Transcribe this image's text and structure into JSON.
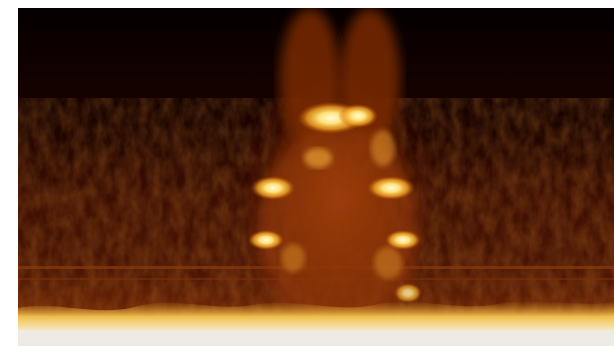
{
  "image": {
    "colormap": "afmhot",
    "colors": {
      "background": "#ffffff",
      "dark": "#0a0000",
      "mid": "#5a1a05",
      "warm": "#b04a0a",
      "hot": "#f2a020",
      "peak": "#ffe890",
      "white": "#f4f0ec"
    }
  }
}
